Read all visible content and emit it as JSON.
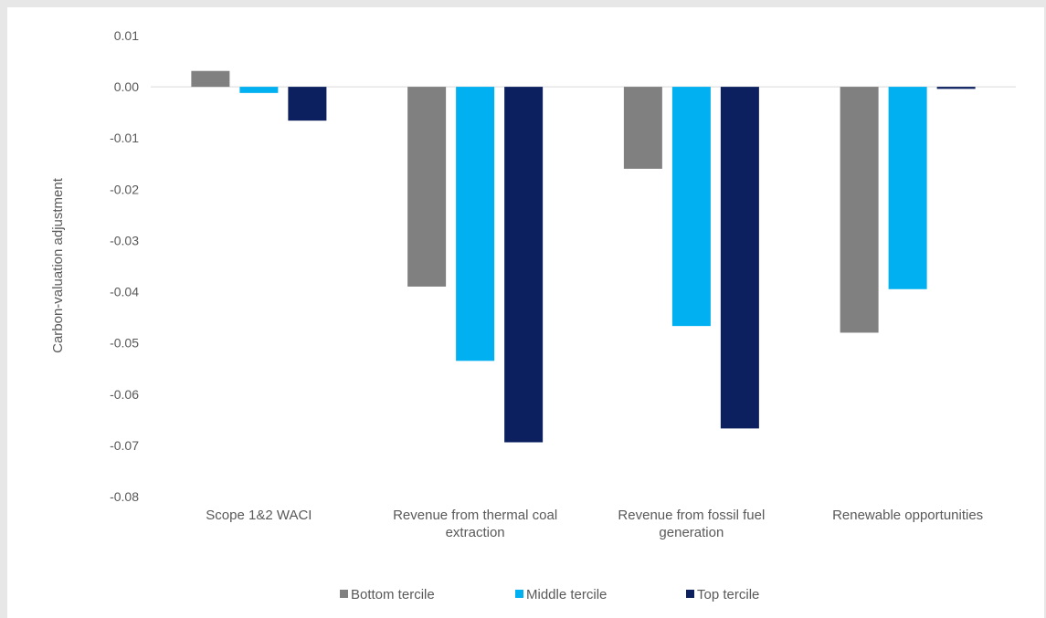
{
  "chart_data": {
    "type": "bar",
    "title": "",
    "xlabel": "",
    "ylabel": "Carbon-valuation adjustment",
    "ylim": [
      -0.08,
      0.01
    ],
    "yticks": [
      0.01,
      0.0,
      -0.01,
      -0.02,
      -0.03,
      -0.04,
      -0.05,
      -0.06,
      -0.07,
      -0.08
    ],
    "ytick_labels": [
      "0.01",
      "0.00",
      "-0.01",
      "-0.02",
      "-0.03",
      "-0.04",
      "-0.05",
      "-0.06",
      "-0.07",
      "-0.08"
    ],
    "categories": [
      [
        "Scope 1&2 WACI"
      ],
      [
        "Revenue from thermal coal",
        "extraction"
      ],
      [
        "Revenue from fossil fuel",
        "generation"
      ],
      [
        "Renewable opportunities"
      ]
    ],
    "series": [
      {
        "name": "Bottom tercile",
        "color": "#808080",
        "values": [
          0.0031,
          -0.039,
          -0.016,
          -0.048
        ]
      },
      {
        "name": "Middle tercile",
        "color": "#00b0f0",
        "values": [
          -0.0012,
          -0.0535,
          -0.0467,
          -0.0395
        ]
      },
      {
        "name": "Top tercile",
        "color": "#0c1f5e",
        "values": [
          -0.0066,
          -0.0694,
          -0.0667,
          -0.0004
        ]
      }
    ],
    "grid": false,
    "legend_position": "bottom"
  }
}
